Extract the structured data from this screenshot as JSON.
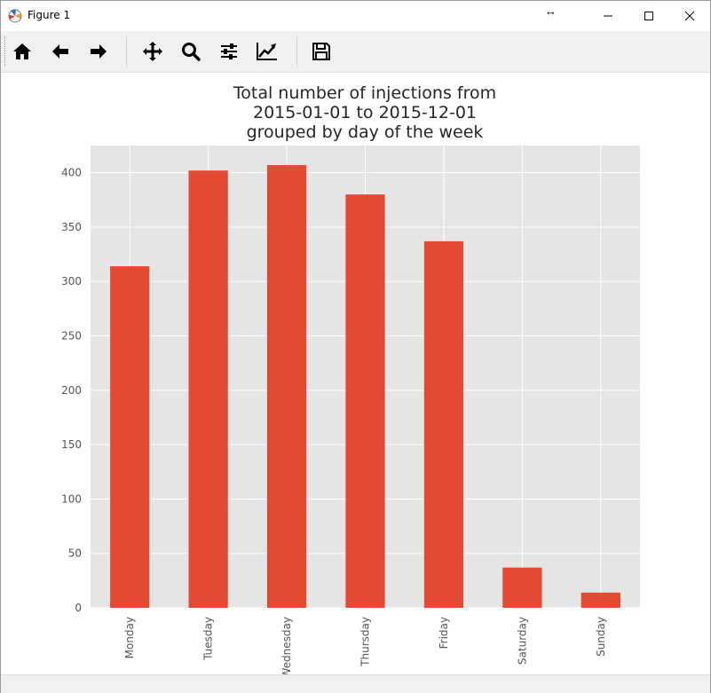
{
  "window": {
    "title": "Figure 1"
  },
  "toolbar": {
    "buttons": [
      {
        "name": "home-icon"
      },
      {
        "name": "back-arrow-icon"
      },
      {
        "name": "forward-arrow-icon"
      },
      {
        "name": "pan-icon"
      },
      {
        "name": "zoom-icon"
      },
      {
        "name": "configure-subplots-icon"
      },
      {
        "name": "edit-axis-icon"
      },
      {
        "name": "save-icon"
      }
    ]
  },
  "colors": {
    "bar": "#e24a33",
    "plot_background": "#e5e5e5",
    "grid": "#ffffff",
    "tick_text": "#555555"
  },
  "chart_data": {
    "type": "bar",
    "title_lines": [
      "Total number of injections from",
      "2015-01-01 to 2015-12-01",
      "grouped by day of the week"
    ],
    "categories": [
      "Monday",
      "Tuesday",
      "Wednesday",
      "Thursday",
      "Friday",
      "Saturday",
      "Sunday"
    ],
    "values": [
      314,
      402,
      407,
      380,
      337,
      37,
      14
    ],
    "xlabel": "",
    "ylabel": "",
    "ylim": [
      0,
      425
    ],
    "yticks": [
      0,
      50,
      100,
      150,
      200,
      250,
      300,
      350,
      400
    ],
    "grid": true,
    "legend": "none"
  }
}
